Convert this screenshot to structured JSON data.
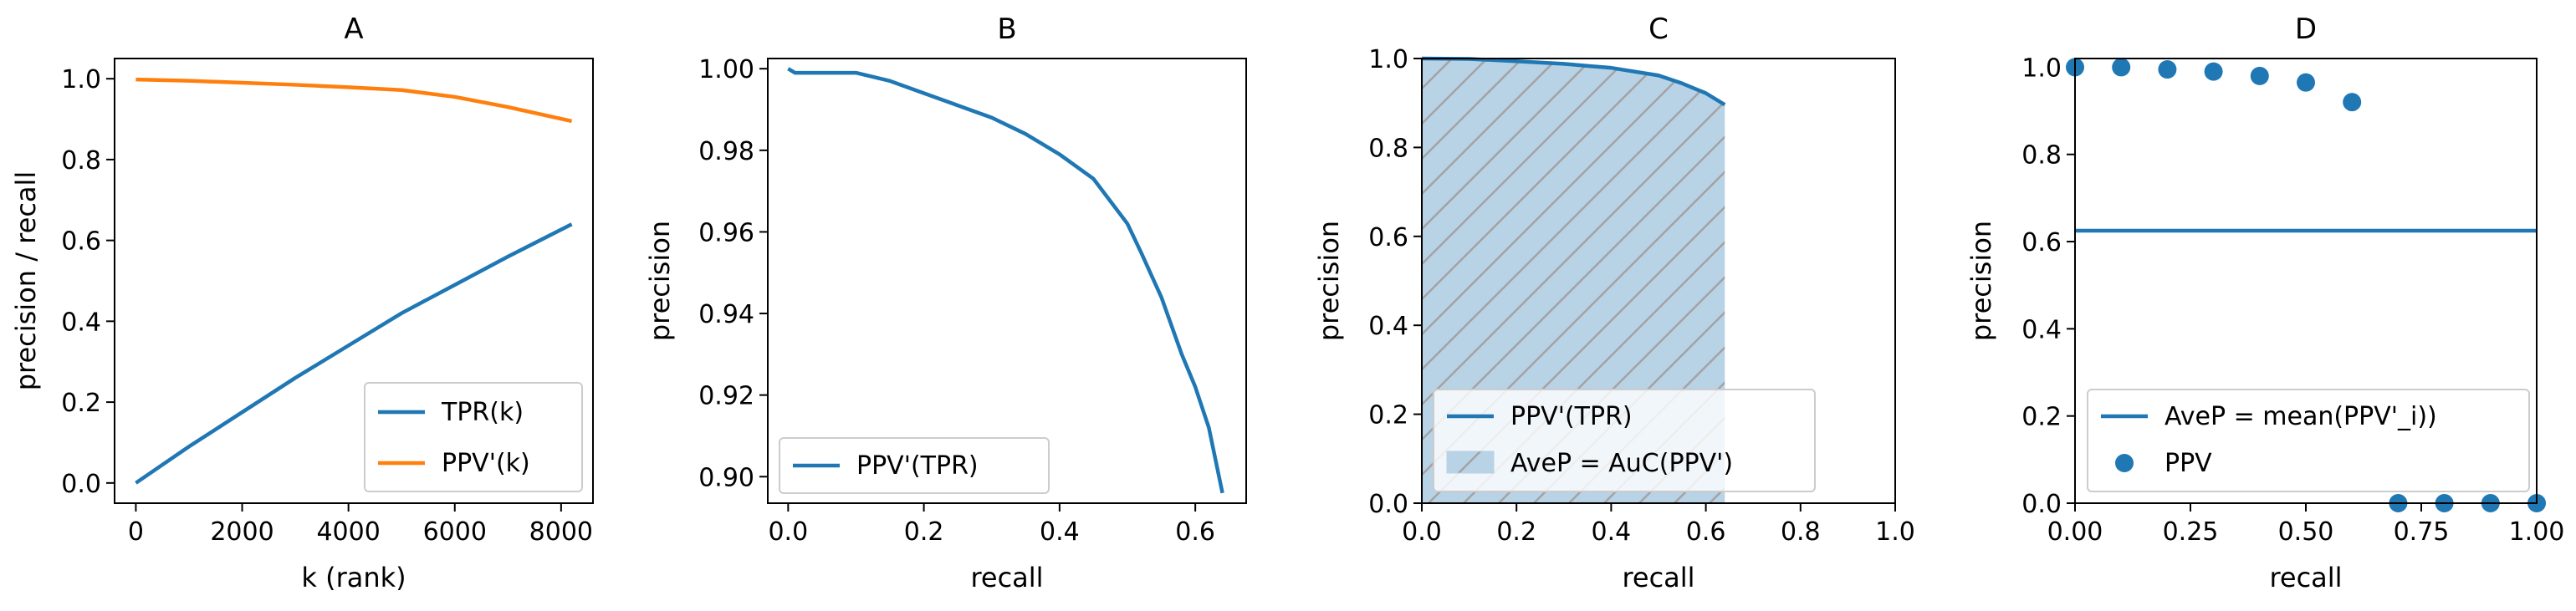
{
  "colors": {
    "blue": "#1f77b4",
    "orange": "#ff7f0e",
    "fill": "#b8d2e6",
    "hatch": "#a3a3a3",
    "legend_edge": "#cccccc"
  },
  "chart_data": [
    {
      "id": "A",
      "type": "line",
      "title": "A",
      "xlabel": "k (rank)",
      "ylabel": "precision / recall",
      "xlim": [
        -400,
        8600
      ],
      "ylim": [
        -0.05,
        1.05
      ],
      "xticks": [
        0,
        2000,
        4000,
        6000,
        8000
      ],
      "xtick_labels": [
        "0",
        "2000",
        "4000",
        "6000",
        "8000"
      ],
      "yticks": [
        0,
        0.2,
        0.4,
        0.6,
        0.8,
        1.0
      ],
      "ytick_labels": [
        "0.0",
        "0.2",
        "0.4",
        "0.6",
        "0.8",
        "1.0"
      ],
      "legend": "lower-right",
      "series": [
        {
          "name": "TPR(k)",
          "color": "#1f77b4",
          "x": [
            0,
            1000,
            2000,
            3000,
            4000,
            5000,
            6000,
            7000,
            8200
          ],
          "y": [
            0.0,
            0.09,
            0.175,
            0.26,
            0.34,
            0.42,
            0.49,
            0.56,
            0.64
          ]
        },
        {
          "name": "PPV'(k)",
          "color": "#ff7f0e",
          "x": [
            0,
            1000,
            2000,
            3000,
            4000,
            5000,
            6000,
            7000,
            8200
          ],
          "y": [
            0.998,
            0.995,
            0.99,
            0.985,
            0.979,
            0.972,
            0.955,
            0.93,
            0.895
          ]
        }
      ]
    },
    {
      "id": "B",
      "type": "line",
      "title": "B",
      "xlabel": "recall",
      "ylabel": "precision",
      "xlim": [
        -0.03,
        0.675
      ],
      "ylim": [
        0.8935,
        1.0025
      ],
      "xticks": [
        0.0,
        0.2,
        0.4,
        0.6
      ],
      "xtick_labels": [
        "0.0",
        "0.2",
        "0.4",
        "0.6"
      ],
      "yticks": [
        0.9,
        0.92,
        0.94,
        0.96,
        0.98,
        1.0
      ],
      "ytick_labels": [
        "0.90",
        "0.92",
        "0.94",
        "0.96",
        "0.98",
        "1.00"
      ],
      "legend": "lower-left",
      "series": [
        {
          "name": "PPV'(TPR)",
          "color": "#1f77b4",
          "x": [
            0.0,
            0.01,
            0.05,
            0.1,
            0.15,
            0.2,
            0.25,
            0.3,
            0.35,
            0.4,
            0.45,
            0.5,
            0.52,
            0.55,
            0.58,
            0.6,
            0.62,
            0.635,
            0.64
          ],
          "y": [
            1.0,
            0.999,
            0.999,
            0.999,
            0.997,
            0.994,
            0.991,
            0.988,
            0.984,
            0.979,
            0.973,
            0.962,
            0.955,
            0.944,
            0.93,
            0.922,
            0.912,
            0.9,
            0.896
          ]
        }
      ]
    },
    {
      "id": "C",
      "type": "area",
      "title": "C",
      "xlabel": "recall",
      "ylabel": "precision",
      "xlim": [
        0,
        1.0
      ],
      "ylim": [
        0,
        1.0
      ],
      "xticks": [
        0,
        0.2,
        0.4,
        0.6,
        0.8,
        1.0
      ],
      "xtick_labels": [
        "0.0",
        "0.2",
        "0.4",
        "0.6",
        "0.8",
        "1.0"
      ],
      "yticks": [
        0,
        0.2,
        0.4,
        0.6,
        0.8,
        1.0
      ],
      "ytick_labels": [
        "0.0",
        "0.2",
        "0.4",
        "0.6",
        "0.8",
        "1.0"
      ],
      "legend": "lower-left",
      "series": [
        {
          "name": "PPV'(TPR)",
          "color": "#1f77b4",
          "x": [
            0.0,
            0.1,
            0.2,
            0.3,
            0.4,
            0.5,
            0.55,
            0.6,
            0.64
          ],
          "y": [
            1.0,
            0.999,
            0.994,
            0.988,
            0.979,
            0.962,
            0.944,
            0.922,
            0.896
          ]
        }
      ],
      "fill_label": "AveP = AuC(PPV')"
    },
    {
      "id": "D",
      "type": "scatter",
      "title": "D",
      "xlabel": "recall",
      "ylabel": "precision",
      "xlim": [
        0,
        1.0
      ],
      "ylim": [
        0,
        1.02
      ],
      "xticks": [
        0,
        0.25,
        0.5,
        0.75,
        1.0
      ],
      "xtick_labels": [
        "0.00",
        "0.25",
        "0.50",
        "0.75",
        "1.00"
      ],
      "yticks": [
        0,
        0.2,
        0.4,
        0.6,
        0.8,
        1.0
      ],
      "ytick_labels": [
        "0.0",
        "0.2",
        "0.4",
        "0.6",
        "0.8",
        "1.0"
      ],
      "legend": "lower-left",
      "hline": {
        "name": "AveP = mean(PPV'_i))",
        "y": 0.625
      },
      "points": {
        "name": "PPV",
        "x": [
          0.0,
          0.1,
          0.2,
          0.3,
          0.4,
          0.5,
          0.6,
          0.7,
          0.8,
          0.9,
          1.0
        ],
        "y": [
          1.0,
          1.0,
          0.995,
          0.99,
          0.98,
          0.965,
          0.92,
          0.0,
          0.0,
          0.0,
          0.0
        ]
      }
    }
  ]
}
